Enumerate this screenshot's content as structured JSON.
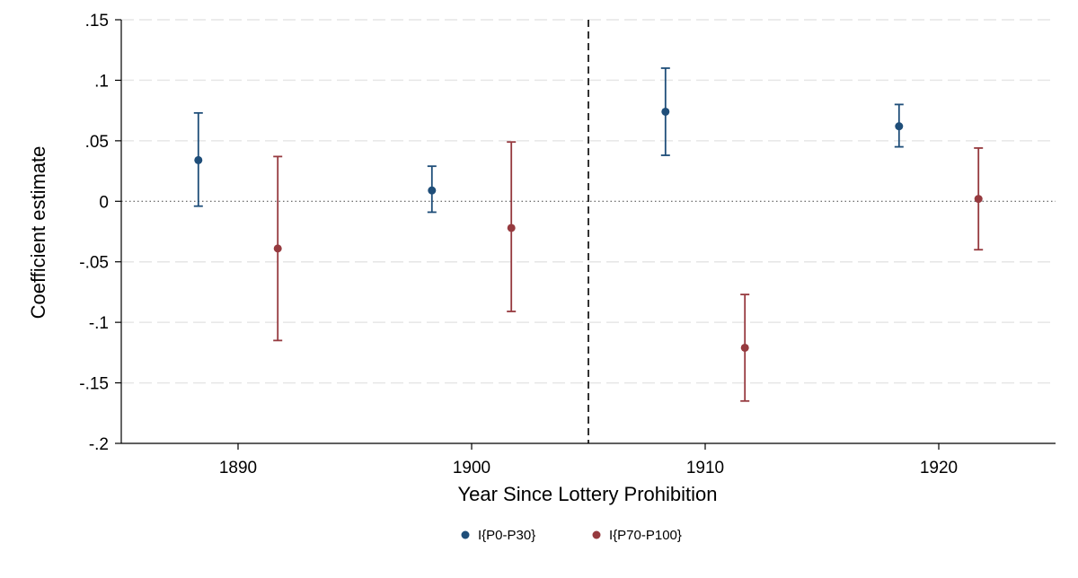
{
  "chart_data": {
    "type": "scatter",
    "xlabel": "Year Since Lottery Prohibition",
    "ylabel": "Coefficient estimate",
    "xlim": [
      1885,
      1925
    ],
    "ylim": [
      -0.2,
      0.15
    ],
    "x_ticks": [
      1890,
      1900,
      1910,
      1920
    ],
    "x_tick_labels": [
      "1890",
      "1900",
      "1910",
      "1920"
    ],
    "y_ticks": [
      -0.2,
      -0.15,
      -0.1,
      -0.05,
      0,
      0.05,
      0.1,
      0.15
    ],
    "y_tick_labels": [
      "-.2",
      "-.15",
      "-.1",
      "-.05",
      "0",
      ".05",
      ".1",
      ".15"
    ],
    "grid": true,
    "reference_line_y": 0,
    "reference_line_x": 1905,
    "legend_position": "bottom",
    "series": [
      {
        "name": "I{P0-P30}",
        "color": "#1f4e79",
        "points": [
          {
            "x": 1888.3,
            "y": 0.034,
            "lo": -0.004,
            "hi": 0.073
          },
          {
            "x": 1898.3,
            "y": 0.009,
            "lo": -0.009,
            "hi": 0.029
          },
          {
            "x": 1908.3,
            "y": 0.074,
            "lo": 0.038,
            "hi": 0.11
          },
          {
            "x": 1918.3,
            "y": 0.062,
            "lo": 0.045,
            "hi": 0.08
          }
        ]
      },
      {
        "name": "I{P70-P100}",
        "color": "#963a3f",
        "points": [
          {
            "x": 1891.7,
            "y": -0.039,
            "lo": -0.115,
            "hi": 0.037
          },
          {
            "x": 1901.7,
            "y": -0.022,
            "lo": -0.091,
            "hi": 0.049
          },
          {
            "x": 1911.7,
            "y": -0.121,
            "lo": -0.165,
            "hi": -0.077
          },
          {
            "x": 1921.7,
            "y": 0.002,
            "lo": -0.04,
            "hi": 0.044
          }
        ]
      }
    ]
  }
}
